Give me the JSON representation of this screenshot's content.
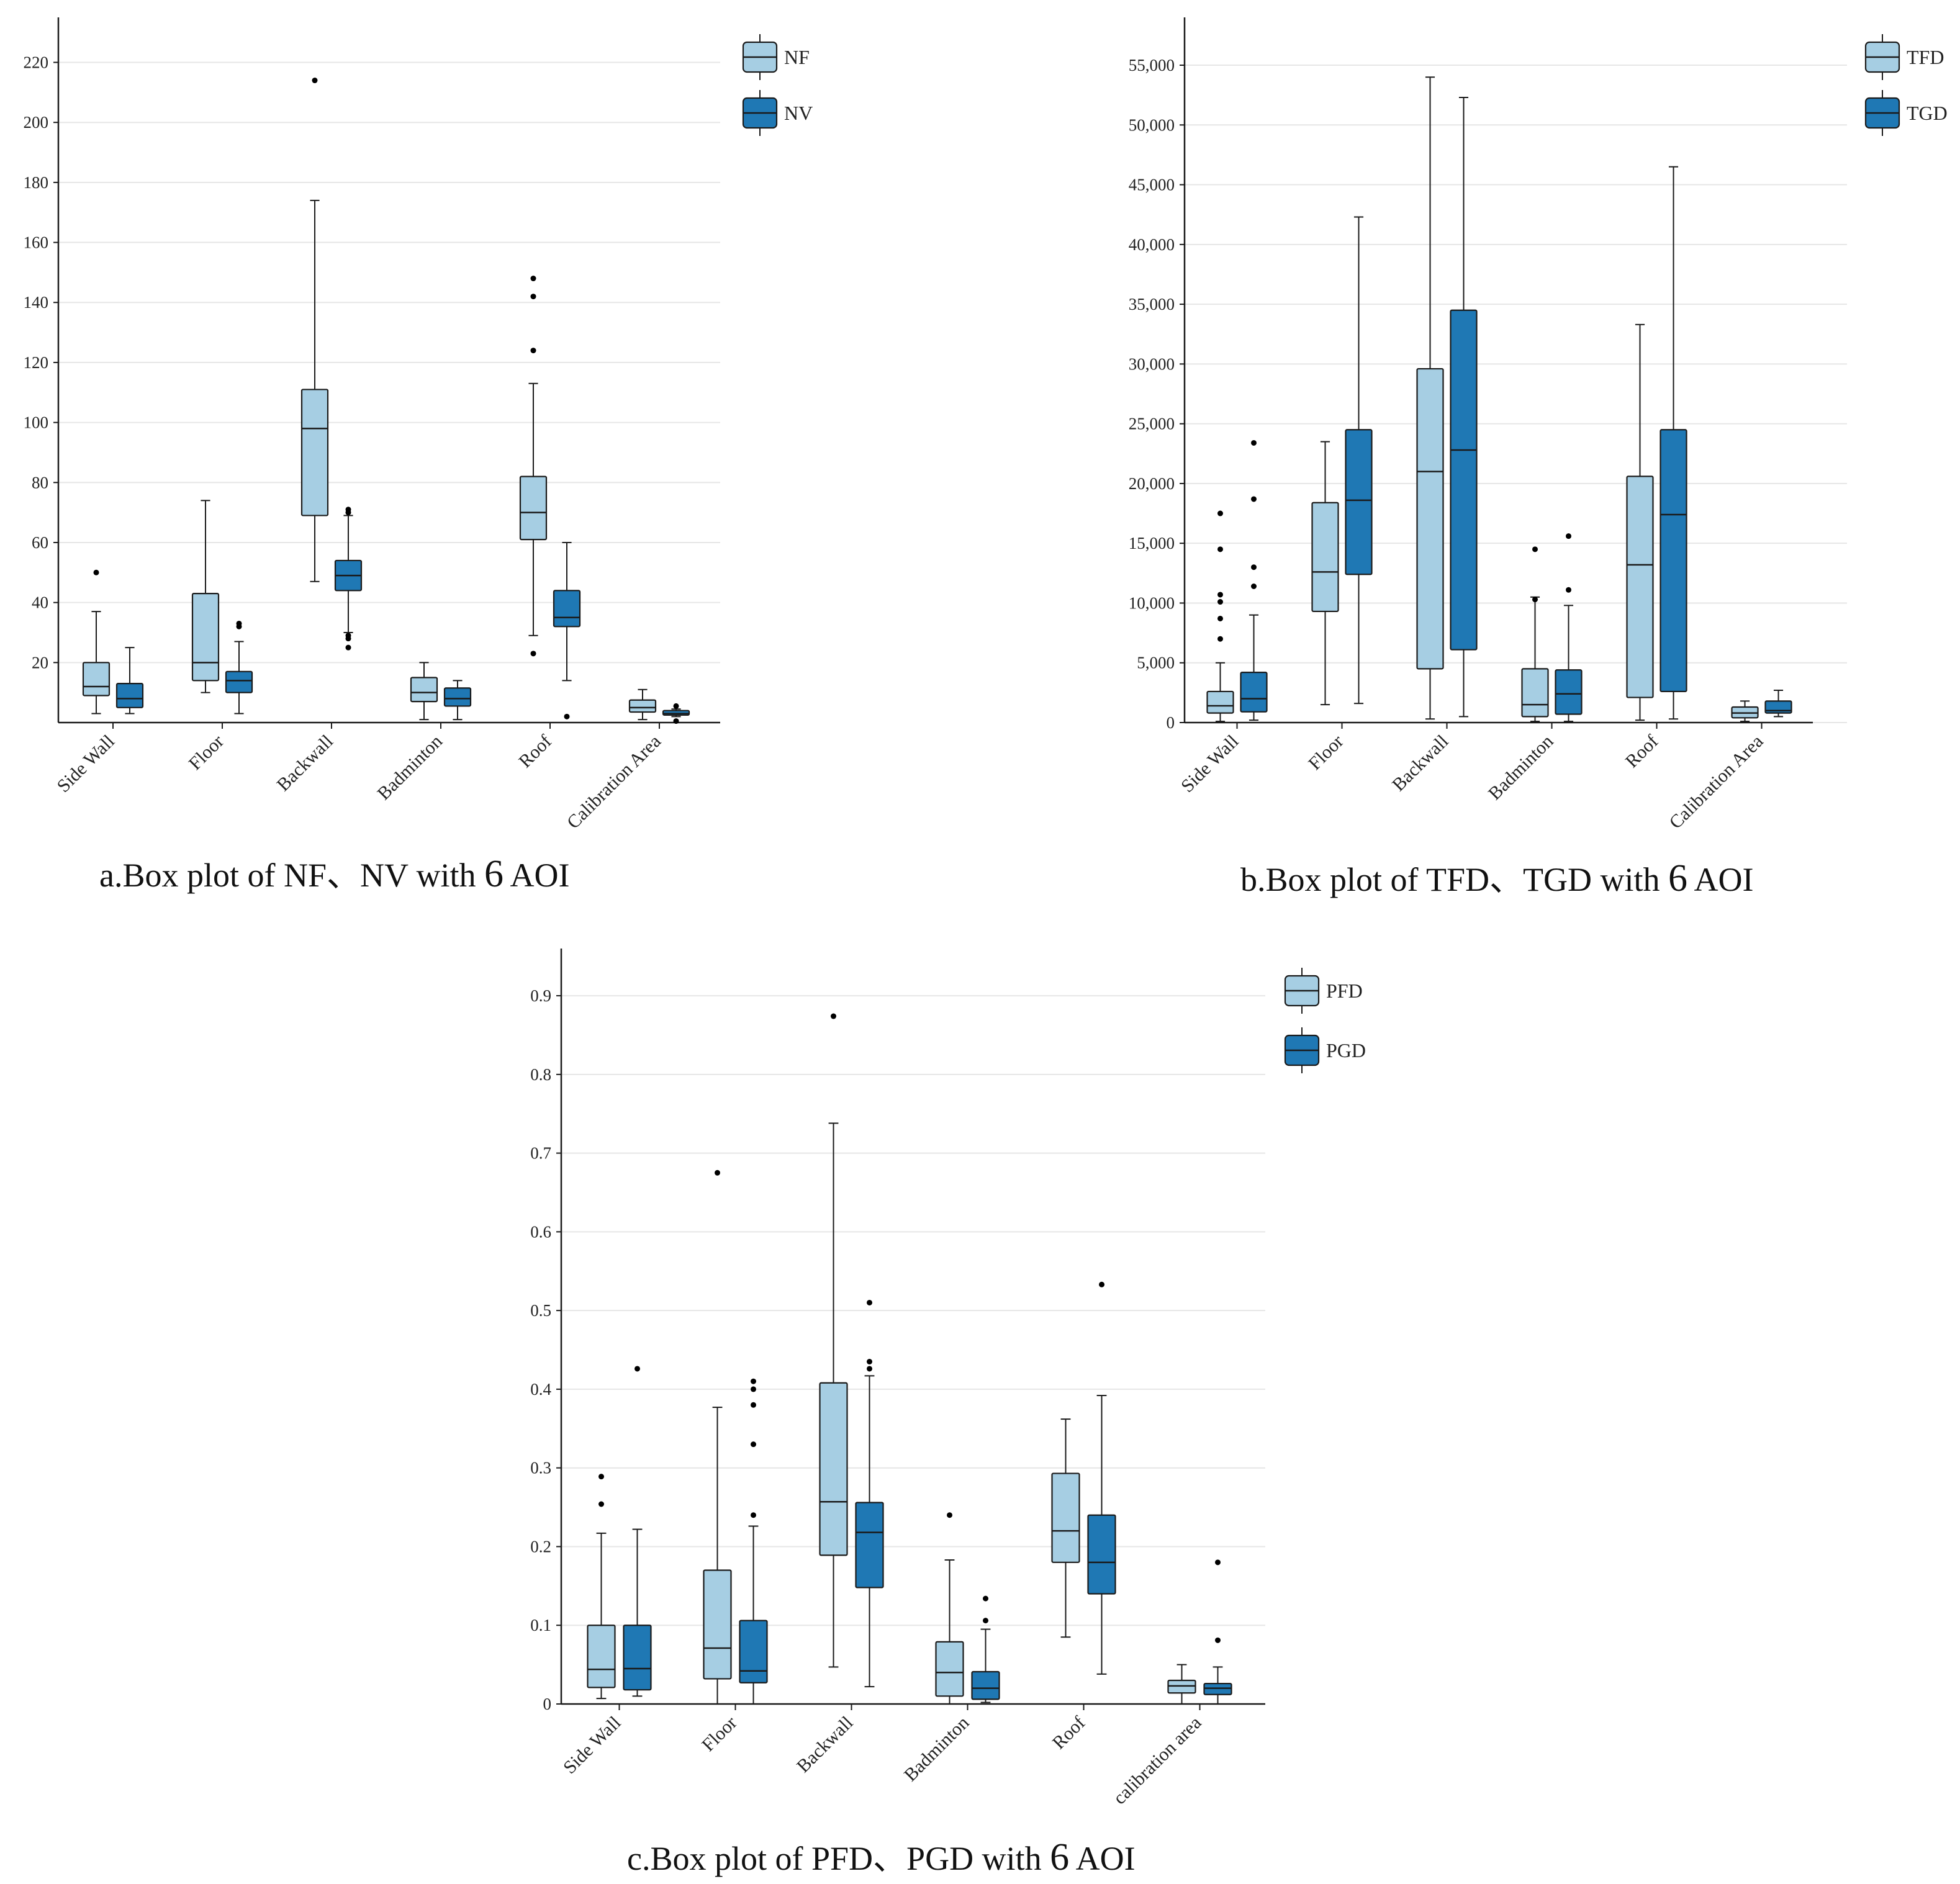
{
  "colors": {
    "light": "#a6cee3",
    "dark": "#1f78b4",
    "stroke": "#1a1a1a",
    "grid": "#e6e6e6"
  },
  "chart_data": [
    {
      "id": "a",
      "type": "box",
      "caption_prefix": "a.Box plot of NF、NV with ",
      "caption_num": "6",
      "caption_suffix": " AOI",
      "ylim": [
        0,
        235
      ],
      "yticks": [
        20,
        40,
        60,
        80,
        100,
        120,
        140,
        160,
        180,
        200,
        220
      ],
      "ytick_labels": [
        "20",
        "40",
        "60",
        "80",
        "100",
        "120",
        "140",
        "160",
        "180",
        "200",
        "220"
      ],
      "categories": [
        "Side Wall",
        "Floor",
        "Backwall",
        "Badminton",
        "Roof",
        "Calibration Area"
      ],
      "series": [
        {
          "name": "NF",
          "color": "light",
          "boxes": [
            {
              "min": 3,
              "q1": 9,
              "median": 12,
              "q3": 20,
              "max": 37,
              "outliers": [
                50
              ]
            },
            {
              "min": 10,
              "q1": 14,
              "median": 20,
              "q3": 43,
              "max": 74,
              "outliers": []
            },
            {
              "min": 47,
              "q1": 69,
              "median": 98,
              "q3": 111,
              "max": 174,
              "outliers": [
                214
              ]
            },
            {
              "min": 1,
              "q1": 7,
              "median": 10,
              "q3": 15,
              "max": 20,
              "outliers": []
            },
            {
              "min": 29,
              "q1": 61,
              "median": 70,
              "q3": 82,
              "max": 113,
              "outliers": [
                23,
                124,
                142,
                148
              ]
            },
            {
              "min": 1,
              "q1": 3.5,
              "median": 5,
              "q3": 7.5,
              "max": 11,
              "outliers": []
            }
          ]
        },
        {
          "name": "NV",
          "color": "dark",
          "boxes": [
            {
              "min": 3,
              "q1": 5,
              "median": 8,
              "q3": 13,
              "max": 25,
              "outliers": []
            },
            {
              "min": 3,
              "q1": 10,
              "median": 14,
              "q3": 17,
              "max": 27,
              "outliers": [
                32,
                33
              ]
            },
            {
              "min": 30,
              "q1": 44,
              "median": 49,
              "q3": 54,
              "max": 69,
              "outliers": [
                25,
                28,
                29,
                70,
                71
              ]
            },
            {
              "min": 1,
              "q1": 5.5,
              "median": 8,
              "q3": 11.5,
              "max": 14,
              "outliers": []
            },
            {
              "min": 14,
              "q1": 32,
              "median": 35,
              "q3": 44,
              "max": 60,
              "outliers": [
                2
              ]
            },
            {
              "min": 2,
              "q1": 2.5,
              "median": 3,
              "q3": 4,
              "max": 4.5,
              "outliers": [
                0.5,
                5.5
              ]
            }
          ]
        }
      ]
    },
    {
      "id": "b",
      "type": "box",
      "caption_prefix": "b.Box plot of TFD、TGD with ",
      "caption_num": "6",
      "caption_suffix": " AOI",
      "ylim": [
        0,
        59000
      ],
      "yticks": [
        0,
        5000,
        10000,
        15000,
        20000,
        25000,
        30000,
        35000,
        40000,
        45000,
        50000,
        55000
      ],
      "ytick_labels": [
        "0",
        "5,000",
        "10,000",
        "15,000",
        "20,000",
        "25,000",
        "30,000",
        "35,000",
        "40,000",
        "45,000",
        "50,000",
        "55,000"
      ],
      "categories": [
        "Side Wall",
        "Floor",
        "Backwall",
        "Badminton",
        "Roof",
        "Calibration Area"
      ],
      "series": [
        {
          "name": "TFD",
          "color": "light",
          "boxes": [
            {
              "min": 100,
              "q1": 800,
              "median": 1400,
              "q3": 2600,
              "max": 5000,
              "outliers": [
                7000,
                8700,
                10100,
                10700,
                14500,
                17500
              ]
            },
            {
              "min": 1500,
              "q1": 9300,
              "median": 12600,
              "q3": 18400,
              "max": 23500,
              "outliers": []
            },
            {
              "min": 300,
              "q1": 4500,
              "median": 21000,
              "q3": 29600,
              "max": 54000,
              "outliers": []
            },
            {
              "min": 100,
              "q1": 500,
              "median": 1500,
              "q3": 4500,
              "max": 10500,
              "outliers": [
                10300,
                14500
              ]
            },
            {
              "min": 200,
              "q1": 2100,
              "median": 13200,
              "q3": 20600,
              "max": 33300,
              "outliers": []
            },
            {
              "min": 100,
              "q1": 400,
              "median": 800,
              "q3": 1300,
              "max": 1800,
              "outliers": []
            }
          ]
        },
        {
          "name": "TGD",
          "color": "dark",
          "boxes": [
            {
              "min": 200,
              "q1": 900,
              "median": 2000,
              "q3": 4200,
              "max": 9000,
              "outliers": [
                11400,
                13000,
                18700,
                23400
              ]
            },
            {
              "min": 1600,
              "q1": 12400,
              "median": 18600,
              "q3": 24500,
              "max": 42300,
              "outliers": []
            },
            {
              "min": 500,
              "q1": 6100,
              "median": 22800,
              "q3": 34500,
              "max": 52300,
              "outliers": []
            },
            {
              "min": 100,
              "q1": 700,
              "median": 2400,
              "q3": 4400,
              "max": 9800,
              "outliers": [
                11100,
                15600
              ]
            },
            {
              "min": 300,
              "q1": 2600,
              "median": 17400,
              "q3": 24500,
              "max": 46500,
              "outliers": []
            },
            {
              "min": 500,
              "q1": 800,
              "median": 1000,
              "q3": 1800,
              "max": 2700,
              "outliers": []
            }
          ]
        }
      ]
    },
    {
      "id": "c",
      "type": "box",
      "caption_prefix": "c.Box plot of PFD、PGD with ",
      "caption_num": "6",
      "caption_suffix": " AOI",
      "ylim": [
        0,
        0.96
      ],
      "yticks": [
        0,
        0.1,
        0.2,
        0.3,
        0.4,
        0.5,
        0.6,
        0.7,
        0.8,
        0.9
      ],
      "ytick_labels": [
        "0",
        "0.1",
        "0.2",
        "0.3",
        "0.4",
        "0.5",
        "0.6",
        "0.7",
        "0.8",
        "0.9"
      ],
      "categories": [
        "Side Wall",
        "Floor",
        "Backwall",
        "Badminton",
        "Roof",
        "calibration area"
      ],
      "series": [
        {
          "name": "PFD",
          "color": "light",
          "boxes": [
            {
              "min": 0.007,
              "q1": 0.021,
              "median": 0.044,
              "q3": 0.1,
              "max": 0.217,
              "outliers": [
                0.254,
                0.289
              ]
            },
            {
              "min": 0.0,
              "q1": 0.032,
              "median": 0.071,
              "q3": 0.17,
              "max": 0.377,
              "outliers": [
                0.675
              ]
            },
            {
              "min": 0.047,
              "q1": 0.189,
              "median": 0.257,
              "q3": 0.408,
              "max": 0.738,
              "outliers": [
                0.874
              ]
            },
            {
              "min": 0.0,
              "q1": 0.01,
              "median": 0.04,
              "q3": 0.079,
              "max": 0.183,
              "outliers": [
                0.24
              ]
            },
            {
              "min": 0.085,
              "q1": 0.18,
              "median": 0.22,
              "q3": 0.293,
              "max": 0.362,
              "outliers": []
            },
            {
              "min": 0.0,
              "q1": 0.014,
              "median": 0.023,
              "q3": 0.03,
              "max": 0.05,
              "outliers": []
            }
          ]
        },
        {
          "name": "PGD",
          "color": "dark",
          "boxes": [
            {
              "min": 0.01,
              "q1": 0.018,
              "median": 0.045,
              "q3": 0.1,
              "max": 0.222,
              "outliers": [
                0.426
              ]
            },
            {
              "min": 0.0,
              "q1": 0.027,
              "median": 0.042,
              "q3": 0.106,
              "max": 0.226,
              "outliers": [
                0.24,
                0.33,
                0.38,
                0.4,
                0.41
              ]
            },
            {
              "min": 0.022,
              "q1": 0.148,
              "median": 0.218,
              "q3": 0.256,
              "max": 0.417,
              "outliers": [
                0.426,
                0.435,
                0.51
              ]
            },
            {
              "min": 0.002,
              "q1": 0.006,
              "median": 0.02,
              "q3": 0.041,
              "max": 0.095,
              "outliers": [
                0.106,
                0.134
              ]
            },
            {
              "min": 0.038,
              "q1": 0.14,
              "median": 0.18,
              "q3": 0.24,
              "max": 0.392,
              "outliers": [
                0.533
              ]
            },
            {
              "min": 0.0,
              "q1": 0.012,
              "median": 0.02,
              "q3": 0.026,
              "max": 0.047,
              "outliers": [
                0.081,
                0.18
              ]
            }
          ]
        }
      ]
    }
  ]
}
